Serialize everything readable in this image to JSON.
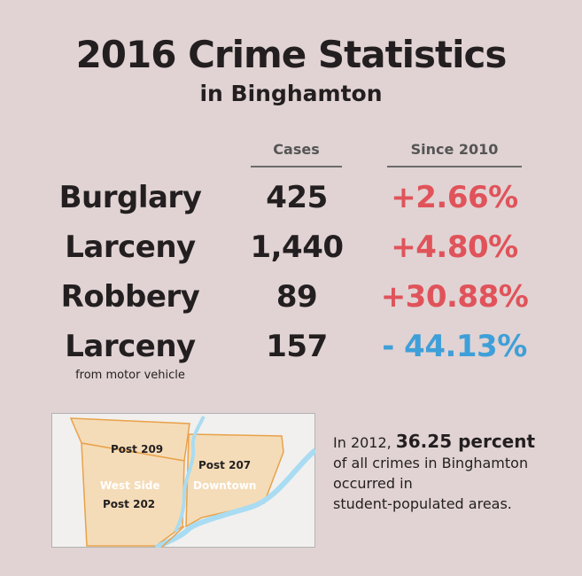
{
  "title": "2016 Crime Statistics",
  "subtitle": "in Binghamton",
  "columns": {
    "cases": "Cases",
    "since": "Since 2010"
  },
  "rows": [
    {
      "label": "Burglary",
      "cases": "425",
      "change": "+2.66%",
      "trend": "up"
    },
    {
      "label": "Larceny",
      "cases": "1,440",
      "change": "+4.80%",
      "trend": "up"
    },
    {
      "label": "Robbery",
      "cases": "89",
      "change": "+30.88%",
      "trend": "up"
    },
    {
      "label": "Larceny",
      "sublabel": "from motor vehicle",
      "cases": "157",
      "change": "- 44.13%",
      "trend": "down"
    }
  ],
  "colors": {
    "background": "#e1d3d3",
    "increase": "#e0535a",
    "decrease": "#3f9fd8",
    "map_fill": "#f5dcb8",
    "map_border": "#e8a24a",
    "river": "#a9dcf2"
  },
  "map": {
    "post_209": "Post 209",
    "west_side": "West Side",
    "post_202": "Post 202",
    "post_207": "Post 207",
    "downtown": "Downtown"
  },
  "note": {
    "prefix": "In 2012, ",
    "highlight": "36.25 percent",
    "line2": "of all crimes in Binghamton",
    "line3": "occurred in",
    "line4": "student-populated areas."
  }
}
